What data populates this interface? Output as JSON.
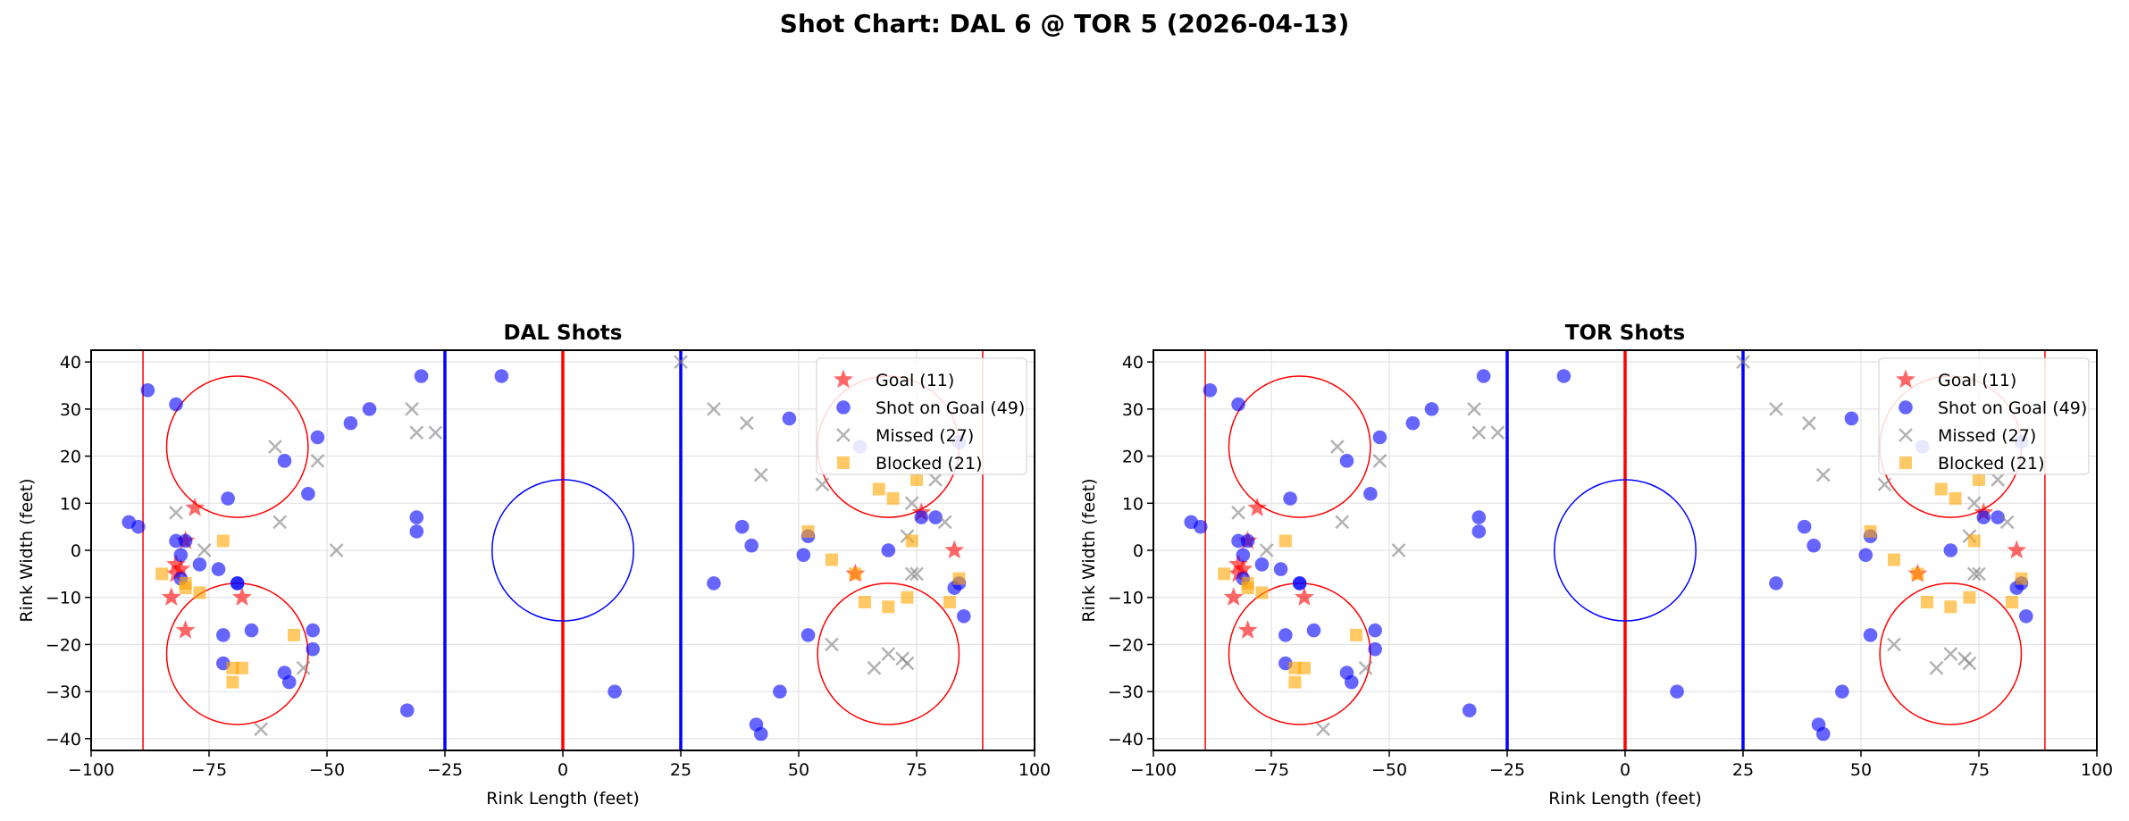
{
  "figure": {
    "title": "Shot Chart: DAL 6 @ TOR 5 (2026-04-13)"
  },
  "colors": {
    "goal": "#ff0000",
    "shot": "#0000ff",
    "missed": "#808080",
    "blocked": "#ffa500",
    "goal_line": "#ff0000",
    "center_line": "#ff0000",
    "blue_line": "#0000ff",
    "faceoff_circle": "#ff0000",
    "center_circle": "#0000ff",
    "grid": "#dddddd"
  },
  "chart_data": [
    {
      "type": "scatter",
      "title": "DAL Shots",
      "xlabel": "Rink Length (feet)",
      "ylabel": "Rink Width (feet)",
      "xlim": [
        -100,
        100
      ],
      "ylim": [
        -42.5,
        42.5
      ],
      "xticks": [
        -100,
        -75,
        -50,
        -25,
        0,
        25,
        50,
        75,
        100
      ],
      "yticks": [
        -40,
        -30,
        -20,
        -10,
        0,
        10,
        20,
        30,
        40
      ],
      "grid": true,
      "legend_position": "top-right",
      "rink": {
        "goal_lines_x": [
          -89,
          89
        ],
        "center_line_x": 0,
        "blue_lines_x": [
          -25,
          25
        ],
        "faceoff_circles": [
          [
            -69,
            22
          ],
          [
            -69,
            -22
          ],
          [
            69,
            22
          ],
          [
            69,
            -22
          ]
        ],
        "faceoff_radius": 15,
        "center_circle": [
          0,
          0
        ],
        "center_radius": 15
      },
      "series": [
        {
          "name": "Goal (11)",
          "marker": "star",
          "points": [
            [
              -80,
              2
            ],
            [
              -82,
              -3
            ],
            [
              -81,
              -4
            ],
            [
              -82,
              -5
            ],
            [
              -83,
              -10
            ],
            [
              -80,
              -17
            ],
            [
              -78,
              9
            ],
            [
              -68,
              -10
            ],
            [
              62,
              -5
            ],
            [
              76,
              8
            ],
            [
              83,
              0
            ]
          ]
        },
        {
          "name": "Shot on Goal (49)",
          "marker": "circle",
          "points": [
            [
              -92,
              6
            ],
            [
              -90,
              5
            ],
            [
              -88,
              34
            ],
            [
              -82,
              31
            ],
            [
              -82,
              2
            ],
            [
              -80,
              2
            ],
            [
              -81,
              -1
            ],
            [
              -81,
              -6
            ],
            [
              -77,
              -3
            ],
            [
              -73,
              -4
            ],
            [
              -71,
              11
            ],
            [
              -69,
              -7
            ],
            [
              -69,
              -7
            ],
            [
              -72,
              -18
            ],
            [
              -66,
              -17
            ],
            [
              -72,
              -24
            ],
            [
              -59,
              19
            ],
            [
              -59,
              -26
            ],
            [
              -58,
              -28
            ],
            [
              -54,
              12
            ],
            [
              -53,
              -17
            ],
            [
              -53,
              -21
            ],
            [
              -52,
              24
            ],
            [
              -45,
              27
            ],
            [
              -41,
              30
            ],
            [
              -30,
              37
            ],
            [
              -31,
              4
            ],
            [
              -31,
              7
            ],
            [
              -33,
              -34
            ],
            [
              -13,
              37
            ],
            [
              11,
              -30
            ],
            [
              32,
              -7
            ],
            [
              38,
              5
            ],
            [
              40,
              1
            ],
            [
              48,
              28
            ],
            [
              51,
              -1
            ],
            [
              52,
              3
            ],
            [
              52,
              -18
            ],
            [
              46,
              -30
            ],
            [
              41,
              -37
            ],
            [
              42,
              -39
            ],
            [
              63,
              22
            ],
            [
              69,
              0
            ],
            [
              76,
              7
            ],
            [
              79,
              7
            ],
            [
              83,
              -8
            ],
            [
              84,
              -7
            ],
            [
              85,
              -14
            ],
            [
              84,
              23
            ]
          ]
        },
        {
          "name": "Missed (27)",
          "marker": "x",
          "points": [
            [
              -82,
              8
            ],
            [
              -76,
              0
            ],
            [
              -61,
              22
            ],
            [
              -60,
              6
            ],
            [
              -52,
              19
            ],
            [
              -48,
              0
            ],
            [
              -55,
              -25
            ],
            [
              -64,
              -38
            ],
            [
              -32,
              30
            ],
            [
              -31,
              25
            ],
            [
              -27,
              25
            ],
            [
              25,
              40
            ],
            [
              32,
              30
            ],
            [
              39,
              27
            ],
            [
              42,
              16
            ],
            [
              55,
              14
            ],
            [
              57,
              -20
            ],
            [
              66,
              -25
            ],
            [
              69,
              -22
            ],
            [
              72,
              -23
            ],
            [
              73,
              -24
            ],
            [
              74,
              -5
            ],
            [
              75,
              -5
            ],
            [
              73,
              3
            ],
            [
              74,
              10
            ],
            [
              79,
              15
            ],
            [
              81,
              6
            ]
          ]
        },
        {
          "name": "Blocked (21)",
          "marker": "square",
          "points": [
            [
              -85,
              -5
            ],
            [
              -80,
              -7
            ],
            [
              -80,
              -8
            ],
            [
              -77,
              -9
            ],
            [
              -72,
              2
            ],
            [
              -70,
              -25
            ],
            [
              -68,
              -25
            ],
            [
              -70,
              -28
            ],
            [
              -57,
              -18
            ],
            [
              52,
              4
            ],
            [
              57,
              -2
            ],
            [
              62,
              -5
            ],
            [
              64,
              -11
            ],
            [
              67,
              13
            ],
            [
              69,
              -12
            ],
            [
              70,
              11
            ],
            [
              73,
              -10
            ],
            [
              74,
              2
            ],
            [
              75,
              15
            ],
            [
              82,
              -11
            ],
            [
              84,
              -6
            ]
          ]
        }
      ]
    },
    {
      "type": "scatter",
      "title": "TOR Shots",
      "xlabel": "Rink Length (feet)",
      "ylabel": "Rink Width (feet)",
      "xlim": [
        -100,
        100
      ],
      "ylim": [
        -42.5,
        42.5
      ],
      "xticks": [
        -100,
        -75,
        -50,
        -25,
        0,
        25,
        50,
        75,
        100
      ],
      "yticks": [
        -40,
        -30,
        -20,
        -10,
        0,
        10,
        20,
        30,
        40
      ],
      "grid": true,
      "legend_position": "top-right",
      "rink": {
        "goal_lines_x": [
          -89,
          89
        ],
        "center_line_x": 0,
        "blue_lines_x": [
          -25,
          25
        ],
        "faceoff_circles": [
          [
            -69,
            22
          ],
          [
            -69,
            -22
          ],
          [
            69,
            22
          ],
          [
            69,
            -22
          ]
        ],
        "faceoff_radius": 15,
        "center_circle": [
          0,
          0
        ],
        "center_radius": 15
      },
      "series": [
        {
          "name": "Goal (11)",
          "marker": "star",
          "points": [
            [
              -80,
              2
            ],
            [
              -82,
              -3
            ],
            [
              -81,
              -4
            ],
            [
              -82,
              -5
            ],
            [
              -83,
              -10
            ],
            [
              -80,
              -17
            ],
            [
              -78,
              9
            ],
            [
              -68,
              -10
            ],
            [
              62,
              -5
            ],
            [
              76,
              8
            ],
            [
              83,
              0
            ]
          ]
        },
        {
          "name": "Shot on Goal (49)",
          "marker": "circle",
          "points": [
            [
              -92,
              6
            ],
            [
              -90,
              5
            ],
            [
              -88,
              34
            ],
            [
              -82,
              31
            ],
            [
              -82,
              2
            ],
            [
              -80,
              2
            ],
            [
              -81,
              -1
            ],
            [
              -81,
              -6
            ],
            [
              -77,
              -3
            ],
            [
              -73,
              -4
            ],
            [
              -71,
              11
            ],
            [
              -69,
              -7
            ],
            [
              -69,
              -7
            ],
            [
              -72,
              -18
            ],
            [
              -66,
              -17
            ],
            [
              -72,
              -24
            ],
            [
              -59,
              19
            ],
            [
              -59,
              -26
            ],
            [
              -58,
              -28
            ],
            [
              -54,
              12
            ],
            [
              -53,
              -17
            ],
            [
              -53,
              -21
            ],
            [
              -52,
              24
            ],
            [
              -45,
              27
            ],
            [
              -41,
              30
            ],
            [
              -30,
              37
            ],
            [
              -31,
              4
            ],
            [
              -31,
              7
            ],
            [
              -33,
              -34
            ],
            [
              -13,
              37
            ],
            [
              11,
              -30
            ],
            [
              32,
              -7
            ],
            [
              38,
              5
            ],
            [
              40,
              1
            ],
            [
              48,
              28
            ],
            [
              51,
              -1
            ],
            [
              52,
              3
            ],
            [
              52,
              -18
            ],
            [
              46,
              -30
            ],
            [
              41,
              -37
            ],
            [
              42,
              -39
            ],
            [
              63,
              22
            ],
            [
              69,
              0
            ],
            [
              76,
              7
            ],
            [
              79,
              7
            ],
            [
              83,
              -8
            ],
            [
              84,
              -7
            ],
            [
              85,
              -14
            ],
            [
              84,
              23
            ]
          ]
        },
        {
          "name": "Missed (27)",
          "marker": "x",
          "points": [
            [
              -82,
              8
            ],
            [
              -76,
              0
            ],
            [
              -61,
              22
            ],
            [
              -60,
              6
            ],
            [
              -52,
              19
            ],
            [
              -48,
              0
            ],
            [
              -55,
              -25
            ],
            [
              -64,
              -38
            ],
            [
              -32,
              30
            ],
            [
              -31,
              25
            ],
            [
              -27,
              25
            ],
            [
              25,
              40
            ],
            [
              32,
              30
            ],
            [
              39,
              27
            ],
            [
              42,
              16
            ],
            [
              55,
              14
            ],
            [
              57,
              -20
            ],
            [
              66,
              -25
            ],
            [
              69,
              -22
            ],
            [
              72,
              -23
            ],
            [
              73,
              -24
            ],
            [
              74,
              -5
            ],
            [
              75,
              -5
            ],
            [
              73,
              3
            ],
            [
              74,
              10
            ],
            [
              79,
              15
            ],
            [
              81,
              6
            ]
          ]
        },
        {
          "name": "Blocked (21)",
          "marker": "square",
          "points": [
            [
              -85,
              -5
            ],
            [
              -80,
              -7
            ],
            [
              -80,
              -8
            ],
            [
              -77,
              -9
            ],
            [
              -72,
              2
            ],
            [
              -70,
              -25
            ],
            [
              -68,
              -25
            ],
            [
              -70,
              -28
            ],
            [
              -57,
              -18
            ],
            [
              52,
              4
            ],
            [
              57,
              -2
            ],
            [
              62,
              -5
            ],
            [
              64,
              -11
            ],
            [
              67,
              13
            ],
            [
              69,
              -12
            ],
            [
              70,
              11
            ],
            [
              73,
              -10
            ],
            [
              74,
              2
            ],
            [
              75,
              15
            ],
            [
              82,
              -11
            ],
            [
              84,
              -6
            ]
          ]
        }
      ]
    }
  ]
}
